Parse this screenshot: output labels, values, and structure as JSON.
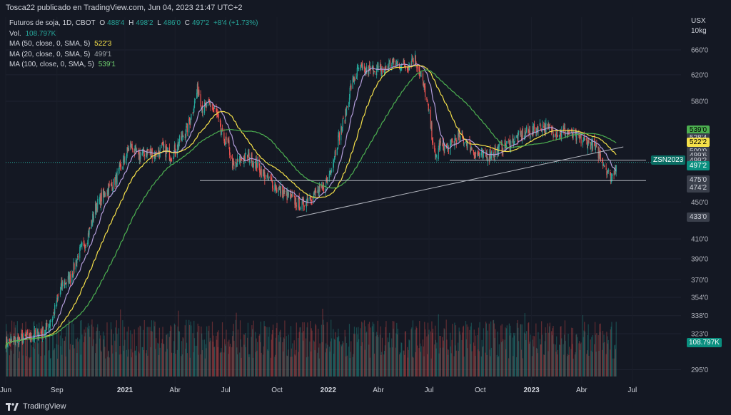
{
  "header": {
    "publisher": "Tosca22 publicado en TradingView.com, Jun 04, 2023 21:47 UTC+2"
  },
  "legend": {
    "title": "Futuros de soja, 1D, CBOT",
    "ohlc": {
      "o_label": "O",
      "o": "488'4",
      "h_label": "H",
      "h": "498'2",
      "l_label": "L",
      "l": "486'0",
      "c_label": "C",
      "c": "497'2",
      "change": "+8'4 (+1.73%)"
    },
    "vol_label": "Vol.",
    "vol_value": "108.797K",
    "ma1_label": "MA (50, close, 0, SMA, 5)",
    "ma1_value": "522'3",
    "ma2_label": "MA (20, close, 0, SMA, 5)",
    "ma2_value": "499'1",
    "ma3_label": "MA (100, close, 0, SMA, 5)",
    "ma3_value": "539'1"
  },
  "axis_unit": {
    "line1": "USX",
    "line2": "10kg"
  },
  "symbol_tag": "ZSN2023",
  "footer": {
    "brand": "TradingView"
  },
  "colors": {
    "background": "#141823",
    "up": "#26a69a",
    "down": "#ef5350",
    "ma20": "#b39ddb",
    "ma50": "#f5e04a",
    "ma100": "#4caf50"
  },
  "price_tags": [
    {
      "label": "539'0",
      "bg": "#4caf50",
      "fg": "#000000",
      "price": 539.0
    },
    {
      "label": "528'4",
      "bg": "#3a3f4b",
      "fg": "#d1d4dc",
      "price": 528.5
    },
    {
      "label": "522'2",
      "bg": "#f5e04a",
      "fg": "#000000",
      "price": 522.25
    },
    {
      "label": "500'0",
      "bg": "#3a3f4b",
      "fg": "#d1d4dc",
      "price": 511.0
    },
    {
      "label": "499'6",
      "bg": "#3a3f4b",
      "fg": "#d1d4dc",
      "price": 505.0
    },
    {
      "label": "499'2",
      "bg": "#3a3f4b",
      "fg": "#d1d4dc",
      "price": 499.0
    },
    {
      "label": "497'2",
      "bg": "#0a8f7f",
      "fg": "#ffffff",
      "price": 492.5
    },
    {
      "label": "475'0",
      "bg": "#3a3f4b",
      "fg": "#d1d4dc",
      "price": 475.0
    },
    {
      "label": "474'2",
      "bg": "#3a3f4b",
      "fg": "#d1d4dc",
      "price": 465.5
    },
    {
      "label": "433'0",
      "bg": "#3a3f4b",
      "fg": "#d1d4dc",
      "price": 433.0
    },
    {
      "label": "108.797K",
      "bg": "#0a8f7f",
      "fg": "#ffffff",
      "price": 315.5
    }
  ],
  "chart_data": {
    "type": "line",
    "title": "Futuros de soja, 1D, CBOT",
    "y_scale": "log",
    "y_ticks": [
      {
        "label": "660'0",
        "value": 660
      },
      {
        "label": "620'0",
        "value": 620
      },
      {
        "label": "580'0",
        "value": 580
      },
      {
        "label": "450'0",
        "value": 450
      },
      {
        "label": "410'0",
        "value": 410
      },
      {
        "label": "390'0",
        "value": 390
      },
      {
        "label": "370'0",
        "value": 370
      },
      {
        "label": "354'0",
        "value": 354
      },
      {
        "label": "338'0",
        "value": 338
      },
      {
        "label": "323'0",
        "value": 323
      },
      {
        "label": "295'0",
        "value": 295
      }
    ],
    "x_ticks": [
      {
        "label": "Jun",
        "date": "2020-06-01"
      },
      {
        "label": "Sep",
        "date": "2020-09-01"
      },
      {
        "label": "2021",
        "date": "2021-01-01",
        "bold": true
      },
      {
        "label": "Abr",
        "date": "2021-04-01"
      },
      {
        "label": "Jul",
        "date": "2021-07-01"
      },
      {
        "label": "Oct",
        "date": "2021-10-01"
      },
      {
        "label": "2022",
        "date": "2022-01-01",
        "bold": true
      },
      {
        "label": "Abr",
        "date": "2022-04-01"
      },
      {
        "label": "Jul",
        "date": "2022-07-01"
      },
      {
        "label": "Oct",
        "date": "2022-10-01"
      },
      {
        "label": "2023",
        "date": "2023-01-01",
        "bold": true
      },
      {
        "label": "Abr",
        "date": "2023-04-01"
      },
      {
        "label": "Jul",
        "date": "2023-07-01"
      }
    ],
    "price_series": {
      "name": "Futuros de soja",
      "points": [
        [
          "2020-06-01",
          316
        ],
        [
          "2020-06-20",
          318
        ],
        [
          "2020-07-10",
          320
        ],
        [
          "2020-07-25",
          322
        ],
        [
          "2020-08-10",
          325
        ],
        [
          "2020-08-25",
          338
        ],
        [
          "2020-09-10",
          365
        ],
        [
          "2020-09-25",
          372
        ],
        [
          "2020-10-10",
          395
        ],
        [
          "2020-10-25",
          410
        ],
        [
          "2020-11-10",
          445
        ],
        [
          "2020-11-25",
          460
        ],
        [
          "2020-12-10",
          470
        ],
        [
          "2020-12-25",
          490
        ],
        [
          "2021-01-10",
          520
        ],
        [
          "2021-01-25",
          505
        ],
        [
          "2021-02-10",
          512
        ],
        [
          "2021-02-25",
          507
        ],
        [
          "2021-03-10",
          515
        ],
        [
          "2021-03-25",
          505
        ],
        [
          "2021-04-10",
          525
        ],
        [
          "2021-04-25",
          545
        ],
        [
          "2021-05-05",
          575
        ],
        [
          "2021-05-12",
          600
        ],
        [
          "2021-05-20",
          570
        ],
        [
          "2021-06-05",
          575
        ],
        [
          "2021-06-15",
          560
        ],
        [
          "2021-06-25",
          530
        ],
        [
          "2021-07-05",
          520
        ],
        [
          "2021-07-15",
          490
        ],
        [
          "2021-07-25",
          500
        ],
        [
          "2021-08-10",
          505
        ],
        [
          "2021-08-25",
          495
        ],
        [
          "2021-09-10",
          480
        ],
        [
          "2021-09-25",
          470
        ],
        [
          "2021-10-10",
          462
        ],
        [
          "2021-10-25",
          455
        ],
        [
          "2021-11-05",
          450
        ],
        [
          "2021-11-15",
          445
        ],
        [
          "2021-11-25",
          455
        ],
        [
          "2021-12-10",
          460
        ],
        [
          "2021-12-25",
          465
        ],
        [
          "2022-01-10",
          500
        ],
        [
          "2022-01-20",
          530
        ],
        [
          "2022-02-01",
          560
        ],
        [
          "2022-02-10",
          600
        ],
        [
          "2022-02-25",
          630
        ],
        [
          "2022-03-10",
          625
        ],
        [
          "2022-03-25",
          630
        ],
        [
          "2022-04-10",
          625
        ],
        [
          "2022-04-25",
          640
        ],
        [
          "2022-05-10",
          635
        ],
        [
          "2022-05-25",
          635
        ],
        [
          "2022-06-05",
          650
        ],
        [
          "2022-06-12",
          630
        ],
        [
          "2022-06-25",
          590
        ],
        [
          "2022-07-05",
          540
        ],
        [
          "2022-07-12",
          500
        ],
        [
          "2022-07-20",
          520
        ],
        [
          "2022-08-05",
          515
        ],
        [
          "2022-08-20",
          530
        ],
        [
          "2022-09-05",
          525
        ],
        [
          "2022-09-20",
          510
        ],
        [
          "2022-10-05",
          505
        ],
        [
          "2022-10-20",
          508
        ],
        [
          "2022-11-05",
          515
        ],
        [
          "2022-11-20",
          520
        ],
        [
          "2022-12-05",
          528
        ],
        [
          "2022-12-20",
          535
        ],
        [
          "2023-01-05",
          540
        ],
        [
          "2023-01-20",
          545
        ],
        [
          "2023-02-05",
          540
        ],
        [
          "2023-02-20",
          535
        ],
        [
          "2023-03-05",
          538
        ],
        [
          "2023-03-20",
          530
        ],
        [
          "2023-04-05",
          525
        ],
        [
          "2023-04-20",
          520
        ],
        [
          "2023-05-05",
          505
        ],
        [
          "2023-05-15",
          490
        ],
        [
          "2023-05-25",
          478
        ],
        [
          "2023-06-02",
          497
        ]
      ]
    },
    "series": [
      {
        "name": "MA (20, close, 0, SMA, 5)",
        "color": "#b39ddb",
        "last": "499'1"
      },
      {
        "name": "MA (50, close, 0, SMA, 5)",
        "color": "#f5e04a",
        "last": "522'3"
      },
      {
        "name": "MA (100, close, 0, SMA, 5)",
        "color": "#4caf50",
        "last": "539'1"
      }
    ],
    "volume_last": "108.797K",
    "horizontal_lines": [
      475.0,
      497.25
    ],
    "trendline": {
      "from": [
        "2021-11-05",
        433
      ],
      "to": [
        "2023-06-02",
        517
      ]
    }
  }
}
